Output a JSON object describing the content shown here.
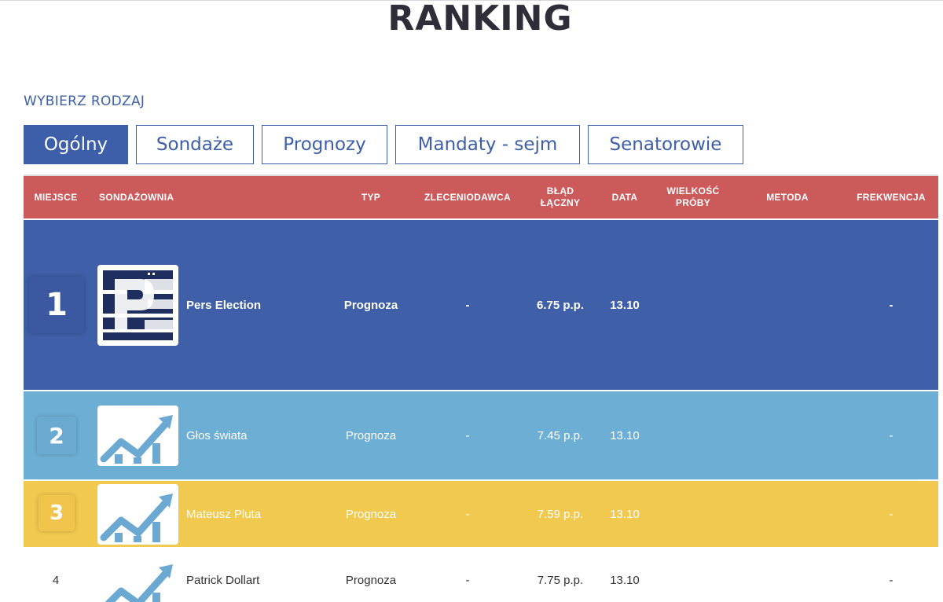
{
  "page": {
    "title": "RANKING",
    "subtitle": "WYBIERZ RODZAJ"
  },
  "tabs": [
    {
      "label": "Ogólny",
      "active": true
    },
    {
      "label": "Sondaże",
      "active": false
    },
    {
      "label": "Prognozy",
      "active": false
    },
    {
      "label": "Mandaty - sejm",
      "active": false
    },
    {
      "label": "Senatorowie",
      "active": false
    }
  ],
  "table": {
    "headers": {
      "miejsce": "MIEJSCE",
      "sondazownia": "SONDAŻOWNIA",
      "typ": "TYP",
      "zleceniodawca": "ZLECENIODAWCA",
      "blad_line1": "BŁĄD",
      "blad_line2": "ŁĄCZNY",
      "data": "DATA",
      "wielkosc_line1": "WIELKOŚĆ",
      "wielkosc_line2": "PRÓBY",
      "metoda": "METODA",
      "frekwencja": "FREKWENCJA"
    },
    "rows": [
      {
        "rank": "1",
        "name": "Pers Election",
        "type": "Prognoza",
        "client": "-",
        "error": "6.75 p.p.",
        "date": "13.10",
        "sample": "",
        "method": "",
        "turnout": "-"
      },
      {
        "rank": "2",
        "name": "Głos świata",
        "type": "Prognoza",
        "client": "-",
        "error": "7.45 p.p.",
        "date": "13.10",
        "sample": "",
        "method": "",
        "turnout": "-"
      },
      {
        "rank": "3",
        "name": "Mateusz Pluta",
        "type": "Prognoza",
        "client": "-",
        "error": "7.59 p.p.",
        "date": "13.10",
        "sample": "",
        "method": "",
        "turnout": "-"
      },
      {
        "rank": "4",
        "name": "Patrick Dollart",
        "type": "Prognoza",
        "client": "-",
        "error": "7.75 p.p.",
        "date": "13.10",
        "sample": "",
        "method": "",
        "turnout": "-"
      }
    ]
  },
  "colors": {
    "brand_blue": "#3d5ea8",
    "header_red": "#cc5a5a",
    "row1": "#3f5fa8",
    "row2": "#6daed4",
    "row3": "#f1c94e",
    "row4": "#ffffff",
    "chart_icon": "#6ba8d2"
  }
}
